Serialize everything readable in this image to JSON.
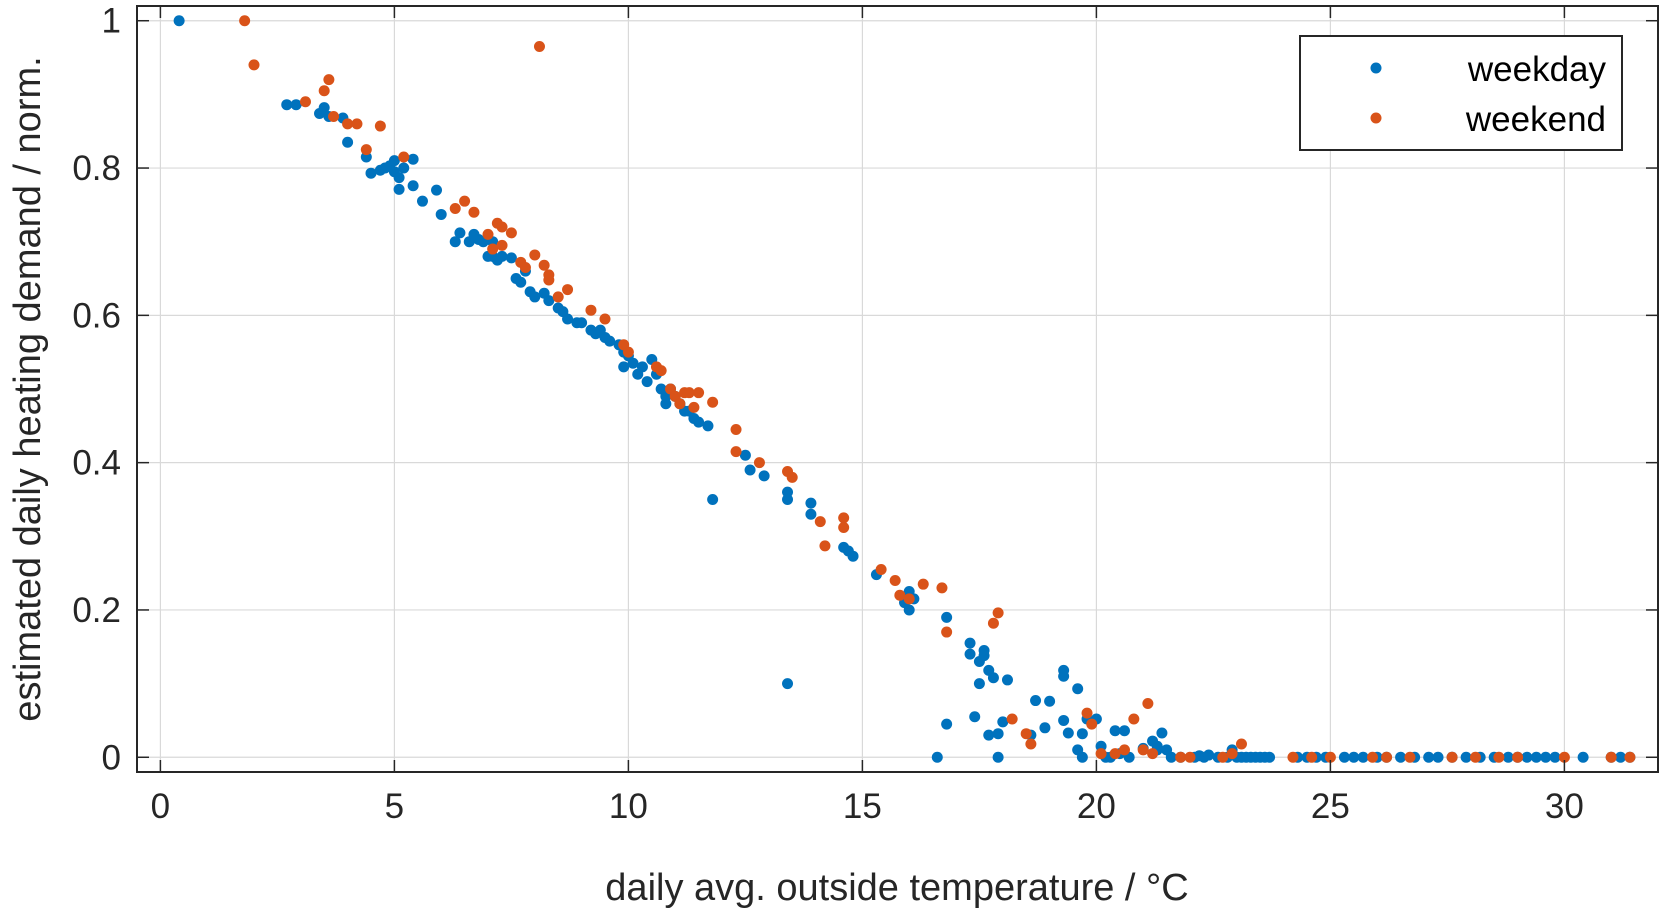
{
  "chart_data": {
    "type": "scatter",
    "title": "",
    "xlabel": "daily avg. outside temperature / °C",
    "ylabel": "estimated daily heating demand / norm.",
    "xlim": [
      -0.5,
      32
    ],
    "ylim": [
      -0.02,
      1.02
    ],
    "xticks": [
      0,
      5,
      10,
      15,
      20,
      25,
      30
    ],
    "yticks": [
      0,
      0.2,
      0.4,
      0.6,
      0.8,
      1
    ],
    "xtick_labels": [
      "0",
      "5",
      "10",
      "15",
      "20",
      "25",
      "30"
    ],
    "ytick_labels": [
      "0",
      "0.2",
      "0.4",
      "0.6",
      "0.8",
      "1"
    ],
    "grid": true,
    "legend_position": "top-right",
    "series": [
      {
        "name": "weekday",
        "color": "#0072BD",
        "points": [
          [
            0.4,
            1.0
          ],
          [
            2.7,
            0.886
          ],
          [
            2.9,
            0.886
          ],
          [
            3.4,
            0.874
          ],
          [
            3.5,
            0.882
          ],
          [
            3.6,
            0.87
          ],
          [
            3.9,
            0.868
          ],
          [
            4.0,
            0.835
          ],
          [
            4.4,
            0.815
          ],
          [
            4.5,
            0.793
          ],
          [
            4.7,
            0.797
          ],
          [
            4.8,
            0.8
          ],
          [
            4.9,
            0.803
          ],
          [
            5.0,
            0.795
          ],
          [
            5.0,
            0.81
          ],
          [
            5.1,
            0.787
          ],
          [
            5.1,
            0.771
          ],
          [
            5.2,
            0.8
          ],
          [
            5.4,
            0.812
          ],
          [
            5.4,
            0.776
          ],
          [
            5.6,
            0.755
          ],
          [
            5.9,
            0.77
          ],
          [
            6.0,
            0.737
          ],
          [
            6.3,
            0.7
          ],
          [
            6.4,
            0.712
          ],
          [
            6.6,
            0.7
          ],
          [
            6.7,
            0.71
          ],
          [
            6.8,
            0.703
          ],
          [
            6.9,
            0.7
          ],
          [
            7.0,
            0.68
          ],
          [
            7.1,
            0.68
          ],
          [
            7.1,
            0.7
          ],
          [
            7.2,
            0.675
          ],
          [
            7.3,
            0.68
          ],
          [
            7.5,
            0.678
          ],
          [
            7.6,
            0.65
          ],
          [
            7.7,
            0.645
          ],
          [
            7.8,
            0.66
          ],
          [
            7.9,
            0.632
          ],
          [
            8.0,
            0.625
          ],
          [
            8.2,
            0.63
          ],
          [
            8.3,
            0.62
          ],
          [
            8.5,
            0.61
          ],
          [
            8.6,
            0.605
          ],
          [
            8.7,
            0.595
          ],
          [
            8.9,
            0.59
          ],
          [
            9.0,
            0.59
          ],
          [
            9.2,
            0.58
          ],
          [
            9.3,
            0.575
          ],
          [
            9.4,
            0.58
          ],
          [
            9.5,
            0.57
          ],
          [
            9.6,
            0.565
          ],
          [
            9.8,
            0.56
          ],
          [
            9.9,
            0.55
          ],
          [
            9.9,
            0.53
          ],
          [
            10.0,
            0.545
          ],
          [
            10.1,
            0.535
          ],
          [
            10.2,
            0.52
          ],
          [
            10.3,
            0.53
          ],
          [
            10.4,
            0.51
          ],
          [
            10.5,
            0.54
          ],
          [
            10.6,
            0.52
          ],
          [
            10.7,
            0.5
          ],
          [
            10.8,
            0.49
          ],
          [
            10.8,
            0.48
          ],
          [
            10.9,
            0.5
          ],
          [
            11.0,
            0.49
          ],
          [
            11.1,
            0.48
          ],
          [
            11.2,
            0.47
          ],
          [
            11.3,
            0.47
          ],
          [
            11.4,
            0.46
          ],
          [
            11.5,
            0.455
          ],
          [
            11.7,
            0.45
          ],
          [
            11.8,
            0.35
          ],
          [
            12.5,
            0.41
          ],
          [
            12.6,
            0.39
          ],
          [
            12.9,
            0.382
          ],
          [
            13.4,
            0.36
          ],
          [
            13.4,
            0.35
          ],
          [
            13.4,
            0.1
          ],
          [
            13.9,
            0.33
          ],
          [
            13.9,
            0.345
          ],
          [
            14.6,
            0.285
          ],
          [
            14.7,
            0.28
          ],
          [
            14.8,
            0.273
          ],
          [
            15.3,
            0.248
          ],
          [
            15.9,
            0.21
          ],
          [
            16.0,
            0.225
          ],
          [
            16.0,
            0.2
          ],
          [
            16.1,
            0.215
          ],
          [
            16.6,
            0.0
          ],
          [
            16.8,
            0.19
          ],
          [
            16.8,
            0.045
          ],
          [
            17.3,
            0.155
          ],
          [
            17.3,
            0.14
          ],
          [
            17.4,
            0.055
          ],
          [
            17.5,
            0.13
          ],
          [
            17.5,
            0.1
          ],
          [
            17.6,
            0.145
          ],
          [
            17.6,
            0.138
          ],
          [
            17.7,
            0.118
          ],
          [
            17.7,
            0.03
          ],
          [
            17.8,
            0.108
          ],
          [
            17.9,
            0.0
          ],
          [
            17.9,
            0.032
          ],
          [
            18.1,
            0.105
          ],
          [
            18.0,
            0.048
          ],
          [
            18.6,
            0.03
          ],
          [
            18.7,
            0.077
          ],
          [
            18.9,
            0.04
          ],
          [
            19.0,
            0.076
          ],
          [
            19.3,
            0.118
          ],
          [
            19.3,
            0.11
          ],
          [
            19.3,
            0.05
          ],
          [
            19.4,
            0.033
          ],
          [
            19.6,
            0.093
          ],
          [
            19.6,
            0.01
          ],
          [
            19.7,
            0.0
          ],
          [
            19.7,
            0.032
          ],
          [
            19.8,
            0.052
          ],
          [
            20.0,
            0.052
          ],
          [
            20.1,
            0.015
          ],
          [
            20.2,
            0.0
          ],
          [
            20.3,
            0.0
          ],
          [
            20.4,
            0.036
          ],
          [
            20.5,
            0.005
          ],
          [
            20.6,
            0.036
          ],
          [
            20.7,
            0.0
          ],
          [
            21.0,
            0.012
          ],
          [
            21.2,
            0.022
          ],
          [
            21.3,
            0.015
          ],
          [
            21.3,
            0.01
          ],
          [
            21.4,
            0.033
          ],
          [
            21.5,
            0.01
          ],
          [
            21.6,
            0.0
          ],
          [
            21.8,
            0.0
          ],
          [
            22.1,
            0.0
          ],
          [
            22.2,
            0.002
          ],
          [
            22.3,
            0.0
          ],
          [
            22.4,
            0.003
          ],
          [
            22.6,
            0.0
          ],
          [
            22.8,
            0.0
          ],
          [
            22.9,
            0.01
          ],
          [
            23.0,
            0.0
          ],
          [
            23.1,
            0.0
          ],
          [
            23.2,
            0.0
          ],
          [
            23.3,
            0.0
          ],
          [
            23.4,
            0.0
          ],
          [
            23.5,
            0.0
          ],
          [
            23.6,
            0.0
          ],
          [
            23.7,
            0.0
          ],
          [
            24.3,
            0.0
          ],
          [
            24.5,
            0.0
          ],
          [
            24.7,
            0.0
          ],
          [
            24.9,
            0.0
          ],
          [
            25.3,
            0.0
          ],
          [
            25.5,
            0.0
          ],
          [
            25.7,
            0.0
          ],
          [
            26.0,
            0.0
          ],
          [
            26.2,
            0.0
          ],
          [
            26.5,
            0.0
          ],
          [
            26.8,
            0.0
          ],
          [
            27.1,
            0.0
          ],
          [
            27.3,
            0.0
          ],
          [
            27.6,
            0.0
          ],
          [
            27.9,
            0.0
          ],
          [
            28.2,
            0.0
          ],
          [
            28.5,
            0.0
          ],
          [
            28.8,
            0.0
          ],
          [
            29.0,
            0.0
          ],
          [
            29.2,
            0.0
          ],
          [
            29.4,
            0.0
          ],
          [
            29.6,
            0.0
          ],
          [
            29.8,
            0.0
          ],
          [
            30.4,
            0.0
          ],
          [
            31.0,
            0.0
          ],
          [
            31.2,
            0.0
          ],
          [
            31.4,
            0.0
          ]
        ]
      },
      {
        "name": "weekend",
        "color": "#D95319",
        "points": [
          [
            1.8,
            1.0
          ],
          [
            2.0,
            0.94
          ],
          [
            3.1,
            0.89
          ],
          [
            3.5,
            0.905
          ],
          [
            3.6,
            0.92
          ],
          [
            3.7,
            0.87
          ],
          [
            4.0,
            0.86
          ],
          [
            4.2,
            0.86
          ],
          [
            4.4,
            0.825
          ],
          [
            4.7,
            0.857
          ],
          [
            5.2,
            0.815
          ],
          [
            6.3,
            0.745
          ],
          [
            6.5,
            0.755
          ],
          [
            6.7,
            0.74
          ],
          [
            7.0,
            0.71
          ],
          [
            7.1,
            0.69
          ],
          [
            7.2,
            0.725
          ],
          [
            7.3,
            0.72
          ],
          [
            7.3,
            0.695
          ],
          [
            7.5,
            0.712
          ],
          [
            7.7,
            0.672
          ],
          [
            7.8,
            0.665
          ],
          [
            8.0,
            0.682
          ],
          [
            8.2,
            0.668
          ],
          [
            8.3,
            0.655
          ],
          [
            8.3,
            0.648
          ],
          [
            8.5,
            0.625
          ],
          [
            8.7,
            0.635
          ],
          [
            8.1,
            0.965
          ],
          [
            9.2,
            0.607
          ],
          [
            9.5,
            0.595
          ],
          [
            9.9,
            0.56
          ],
          [
            10.0,
            0.55
          ],
          [
            10.6,
            0.53
          ],
          [
            10.7,
            0.525
          ],
          [
            10.9,
            0.5
          ],
          [
            11.0,
            0.49
          ],
          [
            11.1,
            0.48
          ],
          [
            11.2,
            0.495
          ],
          [
            11.3,
            0.495
          ],
          [
            11.4,
            0.475
          ],
          [
            11.5,
            0.495
          ],
          [
            11.8,
            0.482
          ],
          [
            12.3,
            0.445
          ],
          [
            12.3,
            0.415
          ],
          [
            12.8,
            0.4
          ],
          [
            13.4,
            0.388
          ],
          [
            13.5,
            0.38
          ],
          [
            14.2,
            0.287
          ],
          [
            14.1,
            0.32
          ],
          [
            14.6,
            0.325
          ],
          [
            14.6,
            0.312
          ],
          [
            15.4,
            0.255
          ],
          [
            15.7,
            0.24
          ],
          [
            15.8,
            0.22
          ],
          [
            16.0,
            0.215
          ],
          [
            16.3,
            0.235
          ],
          [
            16.7,
            0.23
          ],
          [
            16.8,
            0.17
          ],
          [
            17.8,
            0.182
          ],
          [
            17.9,
            0.196
          ],
          [
            18.2,
            0.052
          ],
          [
            18.5,
            0.032
          ],
          [
            18.6,
            0.018
          ],
          [
            19.8,
            0.06
          ],
          [
            19.9,
            0.045
          ],
          [
            20.1,
            0.005
          ],
          [
            20.4,
            0.005
          ],
          [
            20.6,
            0.01
          ],
          [
            20.8,
            0.052
          ],
          [
            21.0,
            0.01
          ],
          [
            21.1,
            0.073
          ],
          [
            21.2,
            0.005
          ],
          [
            21.8,
            0.0
          ],
          [
            22.0,
            0.0
          ],
          [
            22.7,
            0.0
          ],
          [
            22.9,
            0.005
          ],
          [
            23.1,
            0.018
          ],
          [
            24.2,
            0.0
          ],
          [
            24.6,
            0.0
          ],
          [
            25.0,
            0.0
          ],
          [
            25.9,
            0.0
          ],
          [
            26.2,
            0.0
          ],
          [
            26.7,
            0.0
          ],
          [
            27.6,
            0.0
          ],
          [
            28.1,
            0.0
          ],
          [
            28.6,
            0.0
          ],
          [
            29.0,
            0.0
          ],
          [
            30.0,
            0.0
          ],
          [
            31.0,
            0.0
          ],
          [
            31.4,
            0.0
          ]
        ]
      }
    ]
  }
}
